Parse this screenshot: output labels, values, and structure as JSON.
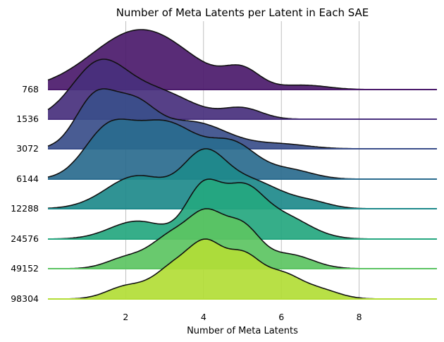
{
  "chart_data": {
    "type": "area",
    "title": "Number of Meta Latents per Latent in Each SAE",
    "xlabel": "Number of Meta Latents",
    "ylabel": "",
    "xlim": [
      0,
      10
    ],
    "xticks": [
      "2",
      "4",
      "6",
      "8"
    ],
    "grid": "vertical",
    "series": [
      {
        "name": "768",
        "color": "#4b1a6b",
        "peaks": [
          {
            "x": 2.4,
            "h": 1.0,
            "w": 1.25
          },
          {
            "x": 5.0,
            "h": 0.28,
            "w": 0.45
          },
          {
            "x": 6.6,
            "h": 0.07,
            "w": 0.6
          }
        ]
      },
      {
        "name": "1536",
        "color": "#48307d",
        "peaks": [
          {
            "x": 1.3,
            "h": 1.0,
            "w": 0.7
          },
          {
            "x": 2.8,
            "h": 0.52,
            "w": 0.9
          },
          {
            "x": 5.0,
            "h": 0.2,
            "w": 0.5
          }
        ]
      },
      {
        "name": "3072",
        "color": "#3a4e8a",
        "peaks": [
          {
            "x": 1.2,
            "h": 0.88,
            "w": 0.5
          },
          {
            "x": 2.2,
            "h": 0.72,
            "w": 0.55
          },
          {
            "x": 3.7,
            "h": 0.48,
            "w": 0.9
          },
          {
            "x": 6.0,
            "h": 0.08,
            "w": 0.7
          }
        ]
      },
      {
        "name": "6144",
        "color": "#2a6b8e",
        "peaks": [
          {
            "x": 1.5,
            "h": 0.55,
            "w": 0.6
          },
          {
            "x": 3.0,
            "h": 0.75,
            "w": 0.9
          },
          {
            "x": 4.8,
            "h": 0.4,
            "w": 0.6
          },
          {
            "x": 6.2,
            "h": 0.12,
            "w": 0.6
          }
        ]
      },
      {
        "name": "12288",
        "color": "#1e8a8b",
        "peaks": [
          {
            "x": 2.3,
            "h": 0.62,
            "w": 0.8
          },
          {
            "x": 4.0,
            "h": 0.9,
            "w": 0.55
          },
          {
            "x": 5.2,
            "h": 0.52,
            "w": 0.8
          },
          {
            "x": 6.8,
            "h": 0.1,
            "w": 0.5
          }
        ]
      },
      {
        "name": "24576",
        "color": "#25a77f",
        "peaks": [
          {
            "x": 2.3,
            "h": 0.35,
            "w": 0.7
          },
          {
            "x": 4.0,
            "h": 1.0,
            "w": 0.45
          },
          {
            "x": 5.0,
            "h": 0.85,
            "w": 0.5
          },
          {
            "x": 6.0,
            "h": 0.45,
            "w": 0.7
          }
        ]
      },
      {
        "name": "49152",
        "color": "#5cc462",
        "peaks": [
          {
            "x": 2.0,
            "h": 0.22,
            "w": 0.5
          },
          {
            "x": 3.2,
            "h": 0.7,
            "w": 0.55
          },
          {
            "x": 4.1,
            "h": 1.0,
            "w": 0.45
          },
          {
            "x": 5.0,
            "h": 0.85,
            "w": 0.45
          },
          {
            "x": 6.2,
            "h": 0.3,
            "w": 0.6
          }
        ]
      },
      {
        "name": "98304",
        "color": "#b2dd36",
        "peaks": [
          {
            "x": 2.0,
            "h": 0.28,
            "w": 0.5
          },
          {
            "x": 3.3,
            "h": 0.78,
            "w": 0.55
          },
          {
            "x": 4.1,
            "h": 1.0,
            "w": 0.42
          },
          {
            "x": 5.0,
            "h": 0.95,
            "w": 0.45
          },
          {
            "x": 6.0,
            "h": 0.55,
            "w": 0.5
          },
          {
            "x": 7.0,
            "h": 0.2,
            "w": 0.5
          }
        ]
      }
    ]
  }
}
